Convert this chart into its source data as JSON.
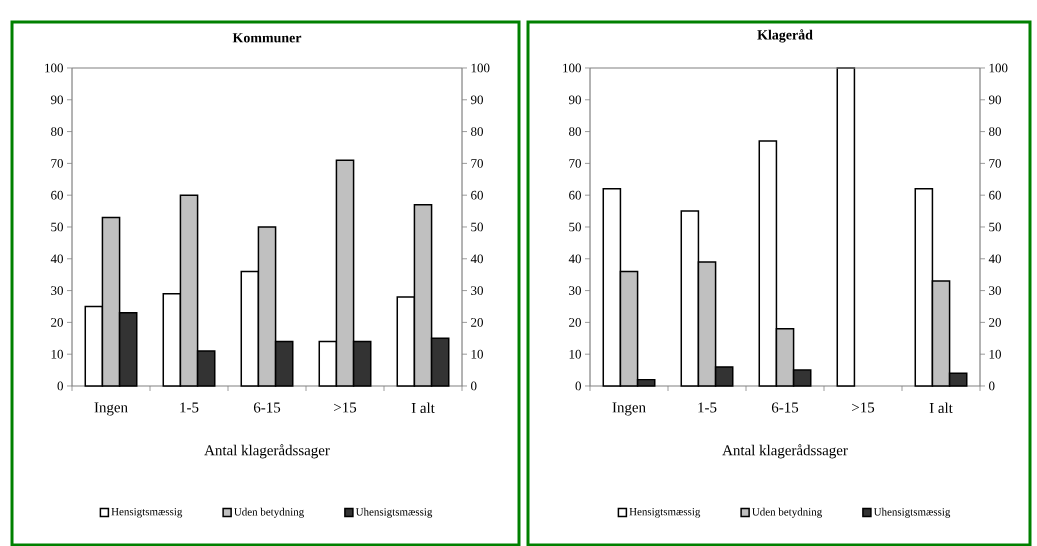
{
  "chart_data": [
    {
      "type": "bar",
      "title": "Kommuner",
      "xlabel": "Antal klagerådssager",
      "categories": [
        "Ingen",
        "1-5",
        "6-15",
        ">15",
        "I alt"
      ],
      "series": [
        {
          "name": "Hensigtsmæssig",
          "color": "#ffffff",
          "values": [
            25,
            29,
            36,
            14,
            28
          ]
        },
        {
          "name": "Uden betydning",
          "color": "#c0c0c0",
          "values": [
            53,
            60,
            50,
            71,
            57
          ]
        },
        {
          "name": "Uhensigtsmæssig",
          "color": "#333333",
          "values": [
            23,
            11,
            14,
            14,
            15
          ]
        }
      ],
      "ylim": [
        0,
        100
      ],
      "yticks": [
        0,
        10,
        20,
        30,
        40,
        50,
        60,
        70,
        80,
        90,
        100
      ],
      "y2lim": [
        0,
        100
      ],
      "y2ticks": [
        0,
        10,
        20,
        30,
        40,
        50,
        60,
        70,
        80,
        90,
        100
      ],
      "legend": "bottom"
    },
    {
      "type": "bar",
      "title": "Klageråd",
      "xlabel": "Antal klagerådssager",
      "categories": [
        "Ingen",
        "1-5",
        "6-15",
        ">15",
        "I alt"
      ],
      "series": [
        {
          "name": "Hensigtsmæssig",
          "color": "#ffffff",
          "values": [
            62,
            55,
            77,
            100,
            62
          ]
        },
        {
          "name": "Uden betydning",
          "color": "#c0c0c0",
          "values": [
            36,
            39,
            18,
            null,
            33
          ]
        },
        {
          "name": "Uhensigtsmæssig",
          "color": "#333333",
          "values": [
            2,
            6,
            5,
            null,
            4
          ]
        }
      ],
      "ylim": [
        0,
        100
      ],
      "yticks": [
        0,
        10,
        20,
        30,
        40,
        50,
        60,
        70,
        80,
        90,
        100
      ],
      "y2lim": [
        0,
        100
      ],
      "y2ticks": [
        0,
        10,
        20,
        30,
        40,
        50,
        60,
        70,
        80,
        90,
        100
      ],
      "legend": "bottom"
    }
  ]
}
